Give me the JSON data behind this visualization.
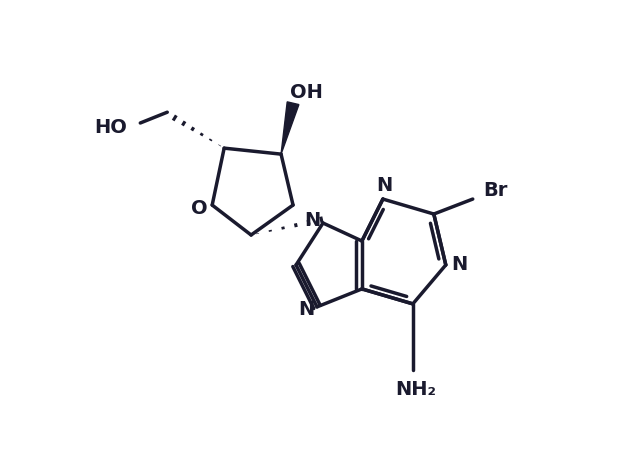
{
  "background_color": "#ffffff",
  "line_color": "#1a1a2e",
  "line_width": 2.5,
  "font_size": 14,
  "figsize": [
    6.4,
    4.7
  ],
  "dpi": 100,
  "xlim": [
    0,
    10
  ],
  "ylim": [
    0,
    7.8
  ]
}
